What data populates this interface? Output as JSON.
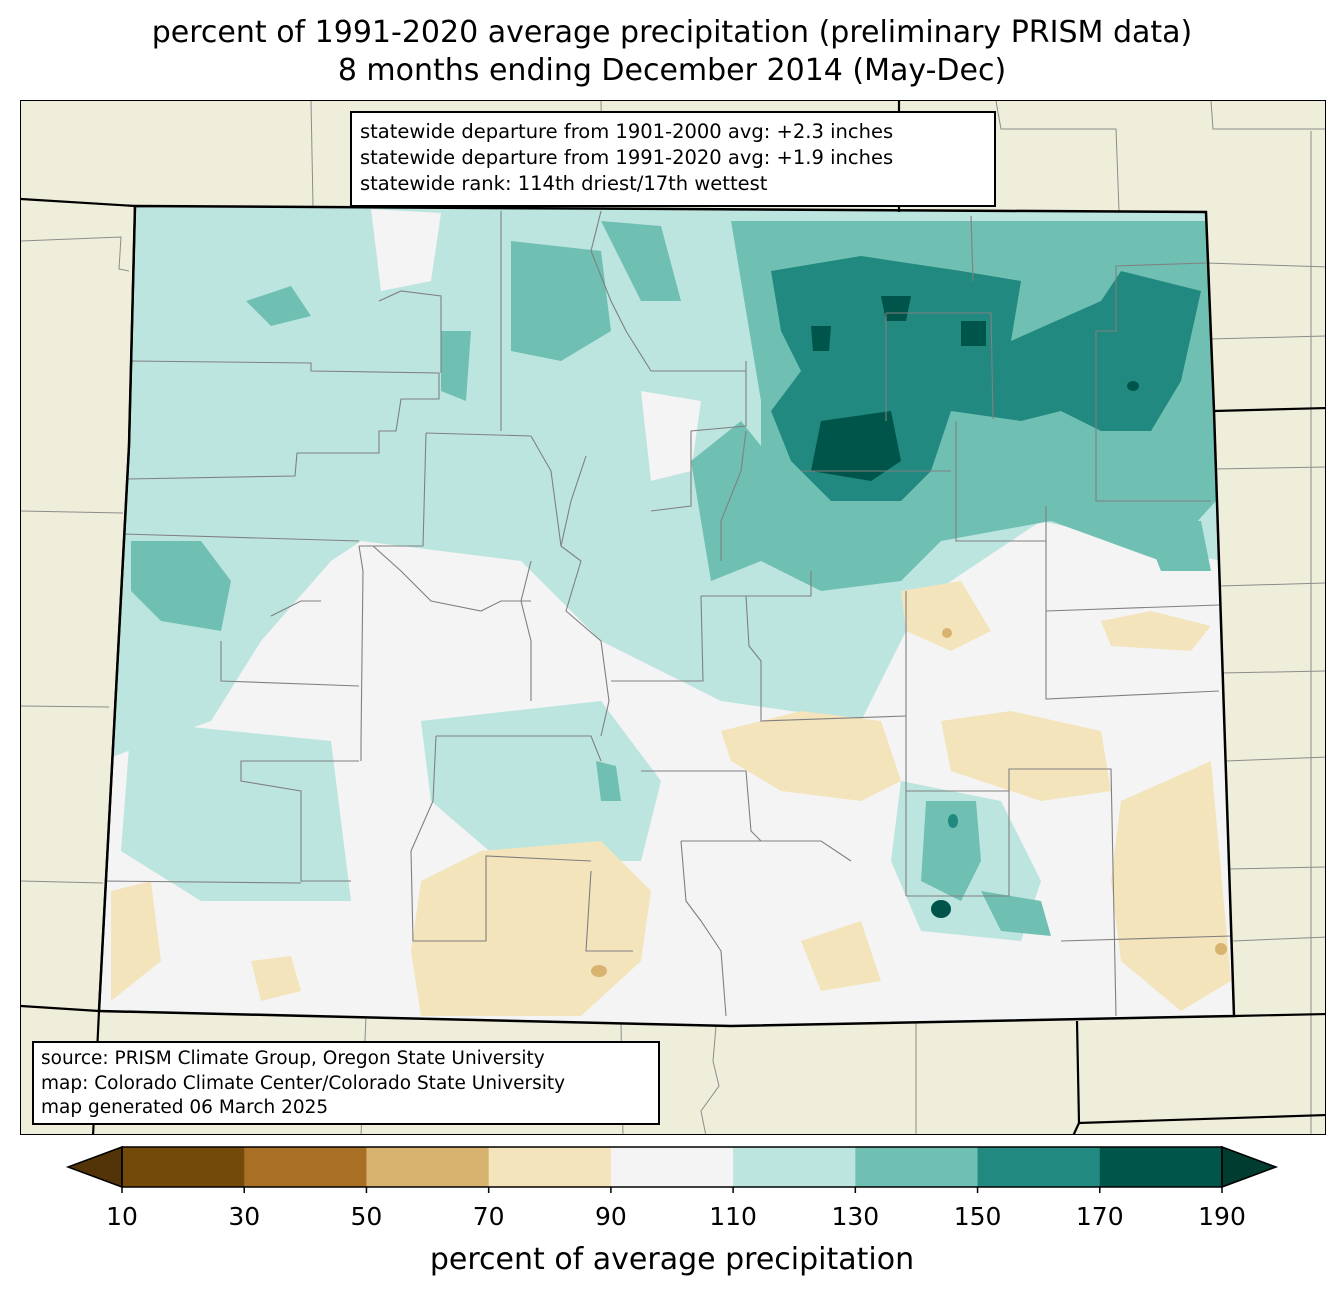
{
  "title": {
    "line1": "percent of 1991-2020 average precipitation (preliminary PRISM data)",
    "line2": "8 months ending December 2014 (May-Dec)"
  },
  "stats": {
    "line1": "statewide departure from 1901-2000 avg: +2.3 inches",
    "line2": "statewide departure from 1991-2020 avg: +1.9 inches",
    "line3": "statewide rank: 114th driest/17th wettest"
  },
  "credits": {
    "line1": "source: PRISM Climate Group, Oregon State University",
    "line2": "map: Colorado Climate Center/Colorado State University",
    "line3": "map generated 06 March 2025"
  },
  "colorbar": {
    "label": "percent of average precipitation",
    "ticks": [
      "10",
      "30",
      "50",
      "70",
      "90",
      "110",
      "130",
      "150",
      "170",
      "190"
    ],
    "bin_colors": [
      "#744a0a",
      "#a96f25",
      "#d8b36f",
      "#f3e4bc",
      "#f3f4f3",
      "#bde5e0",
      "#6fc0b3",
      "#21897f",
      "#00554a"
    ],
    "under_color": "#533408",
    "over_color": "#003c30"
  },
  "colors": {
    "land_outside": "#efeedb",
    "state_border": "#000000",
    "county_border": "#808080"
  }
}
